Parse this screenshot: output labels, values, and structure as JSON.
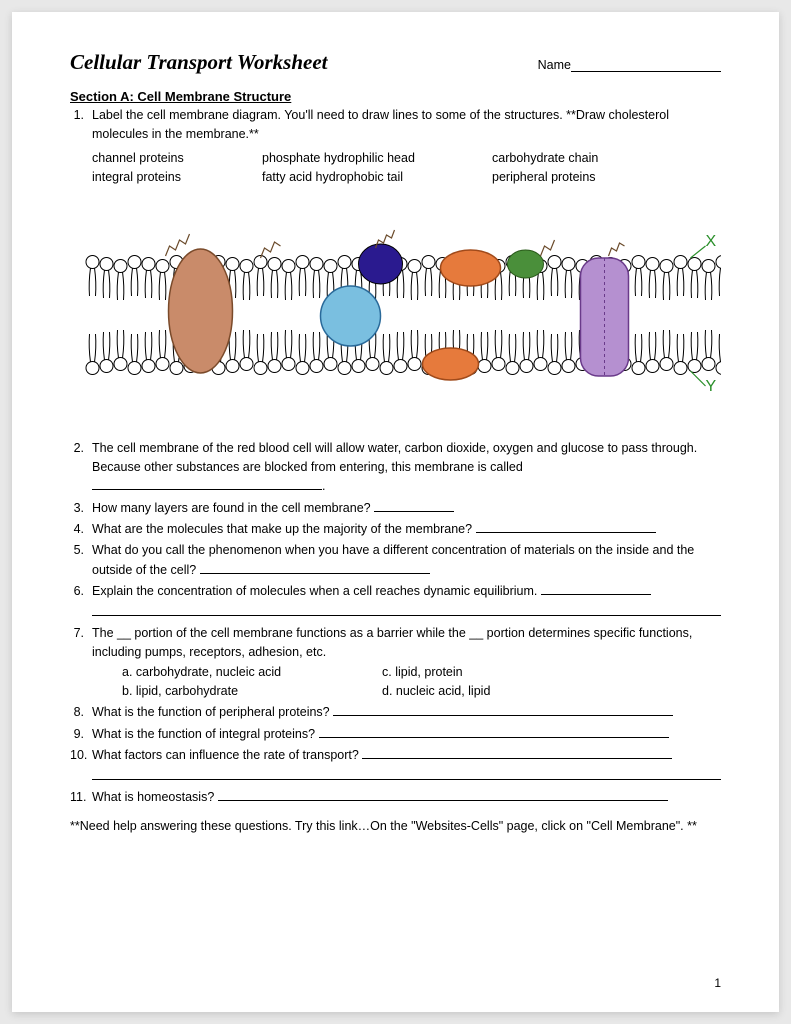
{
  "title": "Cellular Transport Worksheet",
  "name_label": "Name",
  "section_a": "Section A: Cell Membrane Structure",
  "q1": {
    "num": "1.",
    "text": "Label the cell membrane diagram.  You'll need to draw lines to some of the structures. **Draw cholesterol molecules in the membrane.**",
    "terms": [
      "channel proteins",
      "phosphate hydrophilic head",
      "carbohydrate chain",
      "integral proteins",
      "fatty acid hydrophobic tail",
      "peripheral proteins"
    ]
  },
  "diagram": {
    "bg": "#ffffff",
    "head_stroke": "#000000",
    "head_fill": "#ffffff",
    "tail_stroke": "#000000",
    "protein_colors": {
      "brown": "#c98b6a",
      "blue_dark": "#2a1a8f",
      "cyan": "#7abfe0",
      "orange": "#e67a3c",
      "green_top": "#4a8f3a",
      "purple": "#b590d0"
    },
    "carb_color": "#6a4a2a",
    "label_x": "X",
    "label_y": "Y",
    "label_color": "#2a8f2a"
  },
  "q2": {
    "num": "2.",
    "text": "The cell membrane of the red blood cell will allow water, carbon dioxide, oxygen and glucose to pass through. Because other substances are blocked from entering, this membrane is called",
    "tail": "."
  },
  "q3": {
    "num": "3.",
    "text": "How many layers are found in the cell membrane? "
  },
  "q4": {
    "num": "4.",
    "text": "What are the molecules that make up the majority of the membrane? "
  },
  "q5": {
    "num": "5.",
    "text": "What do you call the phenomenon when you have a different concentration of materials on the inside and the outside of the cell? "
  },
  "q6": {
    "num": "6.",
    "text": "Explain the concentration of molecules when a cell reaches dynamic equilibrium. "
  },
  "q7": {
    "num": "7.",
    "text": "The __ portion of the cell membrane functions as a barrier while the __ portion determines specific functions, including pumps, receptors, adhesion, etc.",
    "a": "a.   carbohydrate, nucleic acid",
    "c": "c. lipid, protein",
    "b": "b.   lipid, carbohydrate",
    "d": "d. nucleic acid, lipid"
  },
  "q8": {
    "num": "8.",
    "text": "What is the function of peripheral proteins? "
  },
  "q9": {
    "num": "9.",
    "text": "What is the function of integral proteins? "
  },
  "q10": {
    "num": "10.",
    "text": "What factors can influence the rate of transport? "
  },
  "q11": {
    "num": "11.",
    "text": "What is homeostasis? "
  },
  "hint": "**Need help answering these questions. Try this link…On the \"Websites-Cells\" page, click on \"Cell Membrane\". **",
  "page_num": "1"
}
